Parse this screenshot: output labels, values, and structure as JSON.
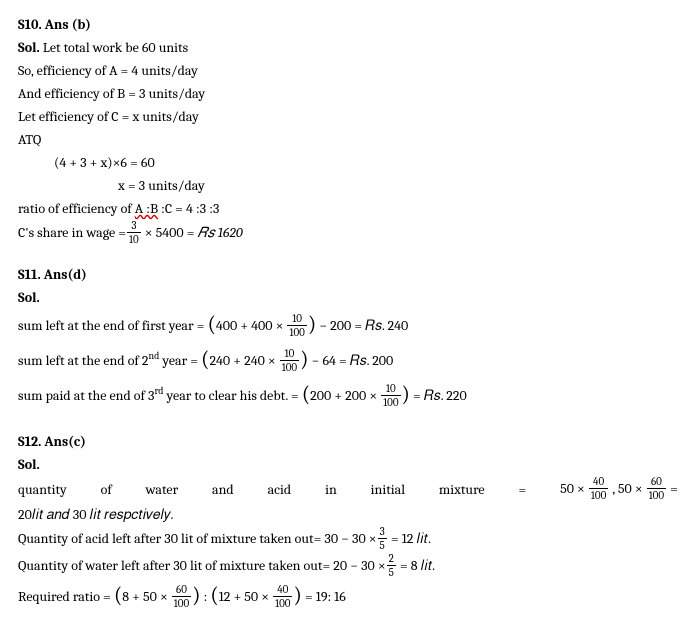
{
  "s10": {
    "header": "S10. Ans (b)",
    "solLabel": "Sol.",
    "line1": " Let total work be 60 units",
    "line2": "So, efficiency of A = 4 units/day",
    "line3": "And efficiency of B = 3 units/day",
    "line4": "Let efficiency of C = x units/day",
    "line5": "ATQ",
    "line6": "(4 + 3 + x)×6 = 60",
    "line7": "x = 3 units/day",
    "line8_pre": "ratio of efficiency of ",
    "line8_wavy": "A :B",
    "line8_post": " :C = 4 :3 :3",
    "line9_pre": "C's share in wage =",
    "frac1_num": "3",
    "frac1_den": "10",
    "line9_mid": " × 5400 = ",
    "line9_rs": "𝑅𝑠 1620"
  },
  "s11": {
    "header": "S11. Ans(d)",
    "solLabel": "Sol.",
    "line1_pre": "sum left at the end of first year = ",
    "expr1_a": "400 + 400 ×",
    "frac2_num": "10",
    "frac2_den": "100",
    "expr1_b": " − 200 = 𝑅𝑠. 240",
    "line2_pre": "sum left at the end of 2",
    "line2_sup": "nd",
    "line2_mid": " year = ",
    "expr2_a": "240 + 240 ×",
    "frac3_num": "10",
    "frac3_den": "100",
    "expr2_b": " − 64 = 𝑅𝑠. 200",
    "line3_pre": "sum paid at the end of 3",
    "line3_sup": "rd",
    "line3_mid": " year to clear his debt. = ",
    "expr3_a": "200 + 200 ×",
    "frac4_num": "10",
    "frac4_den": "100",
    "expr3_b": " = 𝑅𝑠. 220"
  },
  "s12": {
    "header": "S12. Ans(c)",
    "solLabel": "Sol.",
    "jl_w1": "quantity",
    "jl_w2": "of",
    "jl_w3": "water",
    "jl_w4": "and",
    "jl_w5": "acid",
    "jl_w6": "in",
    "jl_w7": "initial",
    "jl_w8": "mixture",
    "jl_w9": "=",
    "jl_expr1": "50 ×",
    "frac5_num": "40",
    "frac5_den": "100",
    "jl_comma": " , 50 ×",
    "frac6_num": "60",
    "frac6_den": "100",
    "jl_eq": " =",
    "line2": "20𝑙𝑖𝑡 𝑎𝑛𝑑 30 𝑙𝑖𝑡  𝑟𝑒𝑠𝑝𝑐𝑡𝑖𝑣𝑒𝑙𝑦.",
    "line3_pre": " Quantity of acid left after 30 lit of mixture taken out= 30 − 30 ×",
    "frac7_num": "3",
    "frac7_den": "5",
    "line3_post": " = 12 𝑙𝑖𝑡.",
    "line4_pre": "Quantity of water left after 30 lit of mixture taken out= 20 − 30 ×",
    "frac8_num": "2",
    "frac8_den": "5",
    "line4_post": " = 8 𝑙𝑖𝑡.",
    "line5_pre": "Required ratio = ",
    "expr5a": "8 + 50 ×",
    "frac9_num": "60",
    "frac9_den": "100",
    "expr5_mid": " : ",
    "expr5b": "12 + 50 ×",
    "frac10_num": "40",
    "frac10_den": "100",
    "expr5_post": " = 19: 16"
  }
}
